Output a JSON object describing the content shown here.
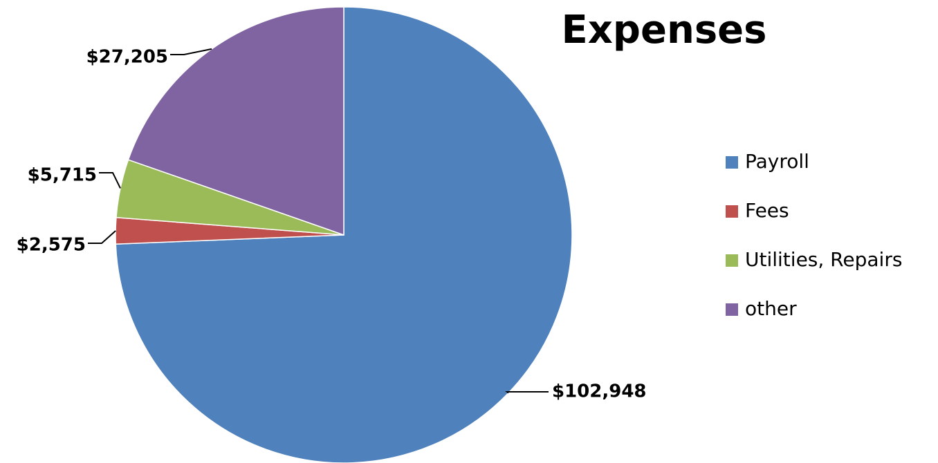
{
  "chart_data": {
    "type": "pie",
    "title": "Expenses",
    "legend_position": "right",
    "slices": [
      {
        "name": "Payroll",
        "value": 102948,
        "label": "$102,948",
        "color": "#4f81bd"
      },
      {
        "name": "Fees",
        "value": 2575,
        "label": "$2,575",
        "color": "#c0504d"
      },
      {
        "name": "Utilities, Repairs",
        "value": 5715,
        "label": "$5,715",
        "color": "#9bbb59"
      },
      {
        "name": "other",
        "value": 27205,
        "label": "$27,205",
        "color": "#8064a2"
      }
    ]
  }
}
